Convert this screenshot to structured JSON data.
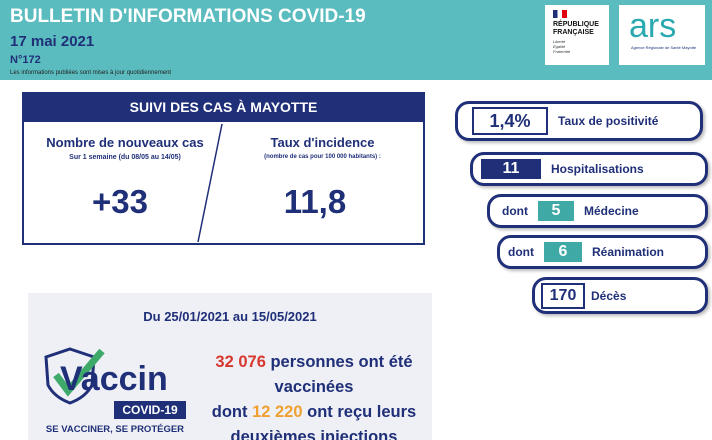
{
  "header": {
    "title": "BULLETIN D'INFORMATIONS COVID-19",
    "date": "17 mai 2021",
    "number": "N°172",
    "note": "Les informations publiées sont mises à jour quotidiennement"
  },
  "logos": {
    "republique": "RÉPUBLIQUE FRANÇAISE",
    "motto": [
      "Liberté",
      "Égalité",
      "Fraternité"
    ],
    "ars": "ars",
    "ars_sub": "Agence Régionale de Santé Mayotte"
  },
  "cases": {
    "title": "SUIVI DES CAS À MAYOTTE",
    "new_cases": {
      "label": "Nombre de nouveaux cas",
      "sublabel": "Sur 1 semaine (du 08/05 au 14/05)",
      "value": "+33"
    },
    "incidence": {
      "label": "Taux d'incidence",
      "sublabel": "(nombre de cas pour 100 000 habitants) :",
      "value": "11,8"
    }
  },
  "indicators": [
    {
      "value": "1,4%",
      "label": "Taux de positivité"
    },
    {
      "value": "11",
      "label": "Hospitalisations"
    },
    {
      "prefix": "dont",
      "value": "5",
      "label": "Médecine"
    },
    {
      "prefix": "dont",
      "value": "6",
      "label": "Réanimation"
    },
    {
      "value": "170",
      "label": "Décès"
    }
  ],
  "vaccination": {
    "period": "Du 25/01/2021 au 15/05/2021",
    "logo": {
      "word": "Vaccin",
      "badge": "COVID-19",
      "slogan": "SE VACCINER, SE PROTÉGER"
    },
    "people": "32 076",
    "people_text": "personnes ont été vaccinées",
    "second_prefix": "dont",
    "second": "12 220",
    "second_text": "ont reçu leurs deuxièmes injections"
  }
}
